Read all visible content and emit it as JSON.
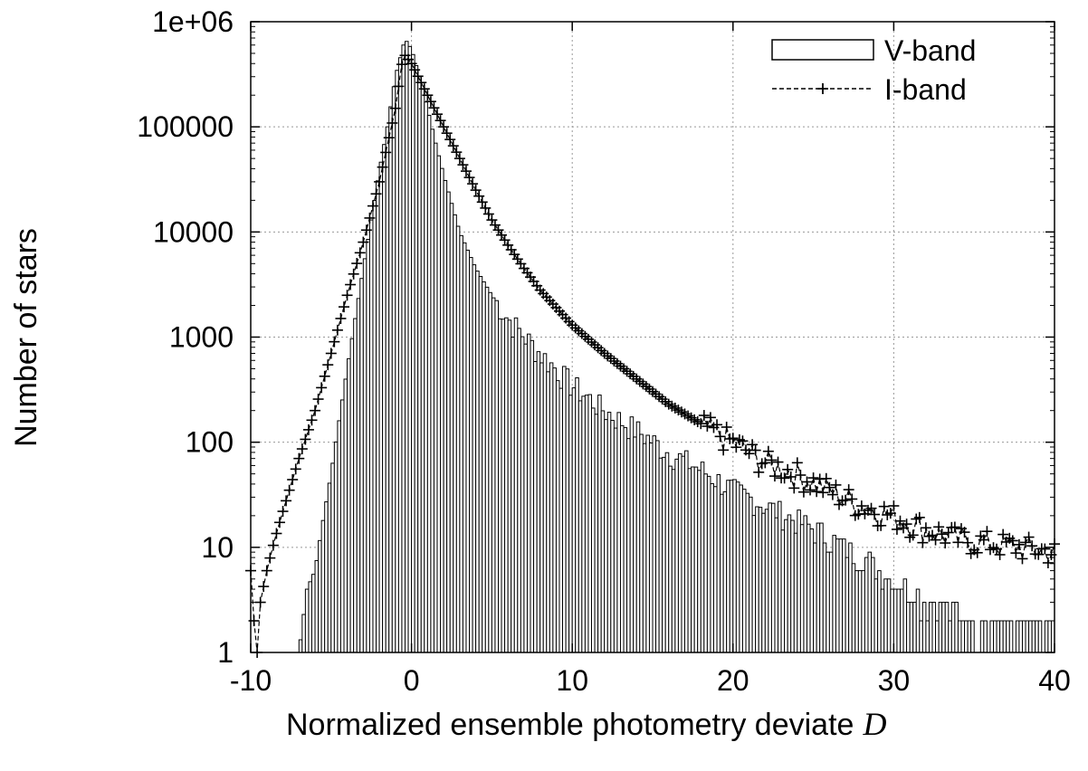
{
  "chart_data": {
    "type": "bar",
    "title": "",
    "xlabel": "Normalized ensemble photometry deviate",
    "xlabel_variable": "D",
    "ylabel": "Number of stars",
    "xlim": [
      -10,
      40
    ],
    "ylim": [
      1,
      1000000
    ],
    "yscale": "log",
    "grid": true,
    "legend_position": "top-right",
    "x_ticks": [
      -10,
      0,
      10,
      20,
      30,
      40
    ],
    "x_tick_labels": [
      "-10",
      "0",
      "10",
      "20",
      "30",
      "40"
    ],
    "y_ticks": [
      1,
      10,
      100,
      1000,
      10000,
      100000,
      1000000
    ],
    "y_tick_labels": [
      "1",
      "10",
      "100",
      "1000",
      "10000",
      "100000",
      "1e+06"
    ],
    "bin_width": 0.2,
    "series": [
      {
        "name": "V-band",
        "style": "histogram boxes",
        "shape": {
          "x_start": -7.0,
          "x_end": 40.0,
          "peak_x": -0.3,
          "peak_value": 650000,
          "anchors_left": [
            [
              -7.0,
              1
            ],
            [
              -6.5,
              4
            ],
            [
              -6.0,
              6
            ],
            [
              -5.5,
              18
            ],
            [
              -5.0,
              50
            ],
            [
              -4.5,
              160
            ],
            [
              -4.0,
              500
            ],
            [
              -3.5,
              1500
            ],
            [
              -3.0,
              4500
            ],
            [
              -2.5,
              13000
            ],
            [
              -2.0,
              38000
            ],
            [
              -1.5,
              100000
            ],
            [
              -1.0,
              300000
            ],
            [
              -0.5,
              600000
            ],
            [
              -0.3,
              650000
            ]
          ],
          "anchors_right": [
            [
              -0.3,
              650000
            ],
            [
              0.0,
              550000
            ],
            [
              0.5,
              300000
            ],
            [
              1.0,
              150000
            ],
            [
              1.5,
              70000
            ],
            [
              2.0,
              35000
            ],
            [
              3.0,
              10000
            ],
            [
              4.0,
              4500
            ],
            [
              5.0,
              2500
            ],
            [
              6.0,
              1500
            ],
            [
              8.0,
              700
            ],
            [
              10.0,
              350
            ],
            [
              12.0,
              200
            ],
            [
              14.0,
              130
            ],
            [
              16.0,
              80
            ],
            [
              18.0,
              55
            ],
            [
              20.0,
              35
            ],
            [
              22.0,
              25
            ],
            [
              25.0,
              15
            ],
            [
              28.0,
              8
            ],
            [
              30.0,
              5
            ],
            [
              32.0,
              3
            ],
            [
              35.0,
              2
            ],
            [
              40.0,
              1.5
            ]
          ]
        }
      },
      {
        "name": "I-band",
        "style": "dashed line with + points",
        "shape": {
          "x_start": -10.0,
          "x_end": 40.0,
          "peak_x": -0.5,
          "peak_value": 500000,
          "anchors_left": [
            [
              -10.0,
              6
            ],
            [
              -9.8,
              2
            ],
            [
              -9.6,
              1
            ],
            [
              -9.4,
              3
            ],
            [
              -9.0,
              6
            ],
            [
              -8.5,
              12
            ],
            [
              -8.0,
              22
            ],
            [
              -7.0,
              70
            ],
            [
              -6.0,
              200
            ],
            [
              -5.0,
              700
            ],
            [
              -4.0,
              2500
            ],
            [
              -3.0,
              8000
            ],
            [
              -2.0,
              30000
            ],
            [
              -1.0,
              150000
            ],
            [
              -0.5,
              500000
            ]
          ],
          "anchors_right": [
            [
              -0.5,
              500000
            ],
            [
              0.0,
              400000
            ],
            [
              1.0,
              200000
            ],
            [
              2.0,
              100000
            ],
            [
              3.0,
              50000
            ],
            [
              4.0,
              25000
            ],
            [
              5.0,
              13000
            ],
            [
              6.0,
              7500
            ],
            [
              7.0,
              4500
            ],
            [
              8.0,
              2800
            ],
            [
              10.0,
              1300
            ],
            [
              12.0,
              700
            ],
            [
              14.0,
              400
            ],
            [
              16.0,
              230
            ],
            [
              18.0,
              150
            ],
            [
              20.0,
              100
            ],
            [
              22.0,
              65
            ],
            [
              24.0,
              50
            ],
            [
              26.0,
              35
            ],
            [
              28.0,
              25
            ],
            [
              30.0,
              20
            ],
            [
              32.0,
              15
            ],
            [
              34.0,
              12
            ],
            [
              36.0,
              11
            ],
            [
              38.0,
              10
            ],
            [
              40.0,
              9
            ]
          ]
        }
      }
    ]
  }
}
